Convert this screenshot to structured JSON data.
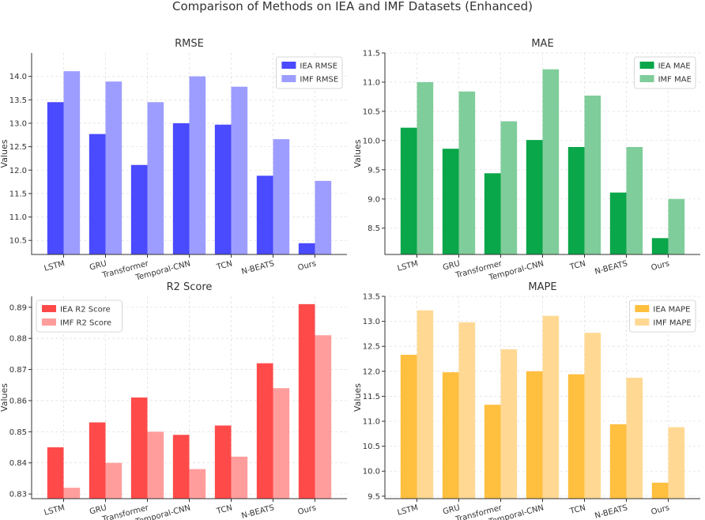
{
  "figure_title": "Comparison of Methods on IEA and IMF Datasets (Enhanced)",
  "chart_data": [
    {
      "type": "bar",
      "title": "RMSE",
      "xlabel": "",
      "ylabel": "Values",
      "categories": [
        "LSTM",
        "GRU",
        "Transformer",
        "Temporal-CNN",
        "TCN",
        "N-BEATS",
        "Ours"
      ],
      "series": [
        {
          "name": "IEA RMSE",
          "color": "#4a4aff",
          "values": [
            13.45,
            12.77,
            12.11,
            13.0,
            12.97,
            11.88,
            10.44
          ]
        },
        {
          "name": "IMF RMSE",
          "color": "#9d9dff",
          "values": [
            14.11,
            13.89,
            13.45,
            14.0,
            13.78,
            12.66,
            11.77
          ]
        }
      ],
      "ylim": [
        10.2,
        14.5
      ],
      "yticks": [
        "10.5",
        "11.0",
        "11.5",
        "12.0",
        "12.5",
        "13.0",
        "13.5",
        "14.0"
      ],
      "legend": "top-right",
      "grid": true
    },
    {
      "type": "bar",
      "title": "MAE",
      "xlabel": "",
      "ylabel": "Values",
      "categories": [
        "LSTM",
        "GRU",
        "Transformer",
        "Temporal-CNN",
        "TCN",
        "N-BEATS",
        "Ours"
      ],
      "series": [
        {
          "name": "IEA MAE",
          "color": "#0aa64a",
          "values": [
            10.22,
            9.86,
            9.44,
            10.01,
            9.89,
            9.11,
            8.33
          ]
        },
        {
          "name": "IMF MAE",
          "color": "#7fcd9a",
          "values": [
            11.0,
            10.84,
            10.33,
            11.22,
            10.77,
            9.89,
            9.0
          ]
        }
      ],
      "ylim": [
        8.05,
        11.5
      ],
      "yticks": [
        "8.5",
        "9.0",
        "9.5",
        "10.0",
        "10.5",
        "11.0",
        "11.5"
      ],
      "legend": "top-right",
      "grid": true
    },
    {
      "type": "bar",
      "title": "R2 Score",
      "xlabel": "",
      "ylabel": "Values",
      "categories": [
        "LSTM",
        "GRU",
        "Transformer",
        "Temporal-CNN",
        "TCN",
        "N-BEATS",
        "Ours"
      ],
      "series": [
        {
          "name": "IEA R2 Score",
          "color": "#ff4a4a",
          "values": [
            0.845,
            0.853,
            0.861,
            0.849,
            0.852,
            0.872,
            0.891
          ]
        },
        {
          "name": "IMF R2 Score",
          "color": "#ff9d9d",
          "values": [
            0.832,
            0.84,
            0.85,
            0.838,
            0.842,
            0.864,
            0.881
          ]
        }
      ],
      "ylim": [
        0.8285,
        0.8935
      ],
      "yticks": [
        "0.83",
        "0.84",
        "0.85",
        "0.86",
        "0.87",
        "0.88",
        "0.89"
      ],
      "legend": "top-left",
      "grid": true
    },
    {
      "type": "bar",
      "title": "MAPE",
      "xlabel": "",
      "ylabel": "Values",
      "categories": [
        "LSTM",
        "GRU",
        "Transformer",
        "Temporal-CNN",
        "TCN",
        "N-BEATS",
        "Ours"
      ],
      "series": [
        {
          "name": "IEA MAPE",
          "color": "#ffbf3f",
          "values": [
            12.33,
            11.98,
            11.33,
            12.0,
            11.94,
            10.94,
            9.77
          ]
        },
        {
          "name": "IMF MAPE",
          "color": "#ffd993",
          "values": [
            13.22,
            12.98,
            12.44,
            13.11,
            12.77,
            11.87,
            10.88
          ]
        }
      ],
      "ylim": [
        9.45,
        13.5
      ],
      "yticks": [
        "9.5",
        "10.0",
        "10.5",
        "11.0",
        "11.5",
        "12.0",
        "12.5",
        "13.0",
        "13.5"
      ],
      "legend": "top-right",
      "grid": true
    }
  ]
}
